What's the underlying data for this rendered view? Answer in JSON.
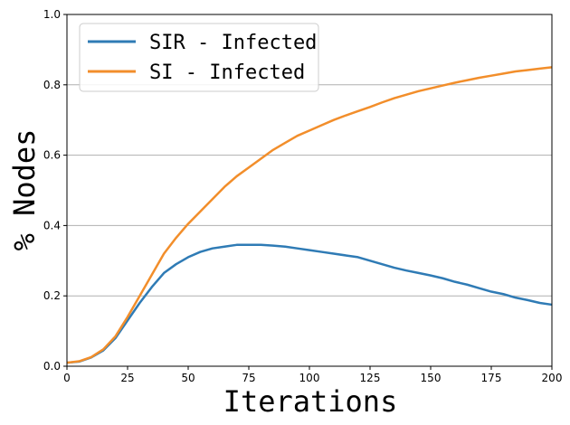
{
  "chart_data": {
    "type": "line",
    "title": "",
    "xlabel": "Iterations",
    "ylabel": "% Nodes",
    "xlim": [
      0,
      200
    ],
    "ylim": [
      0,
      1.0
    ],
    "xticks": [
      0,
      25,
      50,
      75,
      100,
      125,
      150,
      175,
      200
    ],
    "yticks": [
      0.0,
      0.2,
      0.4,
      0.6,
      0.8,
      1.0
    ],
    "xtick_labels": [
      "0",
      "25",
      "50",
      "75",
      "100",
      "125",
      "150",
      "175",
      "200"
    ],
    "ytick_labels": [
      "0.0",
      "0.2",
      "0.4",
      "0.6",
      "0.8",
      "1.0"
    ],
    "grid": "horizontal",
    "legend_position": "upper-left",
    "series": [
      {
        "name": "SIR - Infected",
        "color": "#2f7bb5",
        "points": [
          [
            0,
            0.01
          ],
          [
            5,
            0.013
          ],
          [
            10,
            0.025
          ],
          [
            15,
            0.045
          ],
          [
            20,
            0.08
          ],
          [
            25,
            0.13
          ],
          [
            30,
            0.18
          ],
          [
            35,
            0.225
          ],
          [
            40,
            0.265
          ],
          [
            45,
            0.29
          ],
          [
            50,
            0.31
          ],
          [
            55,
            0.325
          ],
          [
            60,
            0.335
          ],
          [
            65,
            0.34
          ],
          [
            70,
            0.345
          ],
          [
            75,
            0.345
          ],
          [
            80,
            0.345
          ],
          [
            85,
            0.343
          ],
          [
            90,
            0.34
          ],
          [
            95,
            0.335
          ],
          [
            100,
            0.33
          ],
          [
            105,
            0.325
          ],
          [
            110,
            0.32
          ],
          [
            115,
            0.315
          ],
          [
            120,
            0.31
          ],
          [
            125,
            0.3
          ],
          [
            130,
            0.29
          ],
          [
            135,
            0.28
          ],
          [
            140,
            0.272
          ],
          [
            145,
            0.265
          ],
          [
            150,
            0.258
          ],
          [
            155,
            0.25
          ],
          [
            160,
            0.24
          ],
          [
            165,
            0.232
          ],
          [
            170,
            0.222
          ],
          [
            175,
            0.212
          ],
          [
            180,
            0.205
          ],
          [
            185,
            0.195
          ],
          [
            190,
            0.188
          ],
          [
            195,
            0.18
          ],
          [
            200,
            0.175
          ]
        ]
      },
      {
        "name": "SI - Infected",
        "color": "#f28e2b",
        "points": [
          [
            0,
            0.01
          ],
          [
            5,
            0.014
          ],
          [
            10,
            0.026
          ],
          [
            15,
            0.048
          ],
          [
            20,
            0.085
          ],
          [
            25,
            0.14
          ],
          [
            30,
            0.2
          ],
          [
            35,
            0.26
          ],
          [
            40,
            0.32
          ],
          [
            45,
            0.365
          ],
          [
            50,
            0.405
          ],
          [
            55,
            0.44
          ],
          [
            60,
            0.475
          ],
          [
            65,
            0.51
          ],
          [
            70,
            0.54
          ],
          [
            75,
            0.565
          ],
          [
            80,
            0.59
          ],
          [
            85,
            0.615
          ],
          [
            90,
            0.635
          ],
          [
            95,
            0.655
          ],
          [
            100,
            0.67
          ],
          [
            105,
            0.685
          ],
          [
            110,
            0.7
          ],
          [
            115,
            0.713
          ],
          [
            120,
            0.725
          ],
          [
            125,
            0.737
          ],
          [
            130,
            0.75
          ],
          [
            135,
            0.762
          ],
          [
            140,
            0.772
          ],
          [
            145,
            0.782
          ],
          [
            150,
            0.79
          ],
          [
            155,
            0.798
          ],
          [
            160,
            0.806
          ],
          [
            165,
            0.813
          ],
          [
            170,
            0.82
          ],
          [
            175,
            0.826
          ],
          [
            180,
            0.832
          ],
          [
            185,
            0.838
          ],
          [
            190,
            0.842
          ],
          [
            195,
            0.846
          ],
          [
            200,
            0.85
          ]
        ]
      }
    ]
  }
}
